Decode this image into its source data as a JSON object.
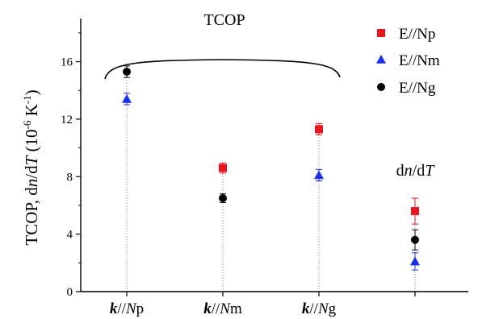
{
  "chart_data": {
    "type": "scatter",
    "categories": [
      "k//Np",
      "k//Nm",
      "k//Ng",
      "dn/dT"
    ],
    "category_labels": [
      {
        "bold": "k",
        "mid": "//",
        "ital": "N",
        "tail": "p"
      },
      {
        "bold": "k",
        "mid": "//",
        "ital": "N",
        "tail": "m"
      },
      {
        "bold": "k",
        "mid": "//",
        "ital": "N",
        "tail": "g"
      },
      {
        "bold": "",
        "mid": "",
        "ital": "",
        "tail": ""
      }
    ],
    "ylim": [
      0,
      19
    ],
    "yticks": [
      0,
      4,
      8,
      12,
      16
    ],
    "ylabel": {
      "pre": "TCOP, d",
      "n": "n",
      "mid": "/d",
      "T": "T",
      "space": " (10",
      "exp1": "-6",
      "k": " K",
      "exp2": "-1",
      "close": ")"
    },
    "series": [
      {
        "name": "E//Np",
        "marker": "square",
        "color": "#e8141e",
        "values": [
          null,
          8.6,
          11.3,
          5.6
        ],
        "errors": [
          null,
          0.35,
          0.4,
          0.9
        ]
      },
      {
        "name": "E//Nm",
        "marker": "triangle",
        "color": "#1a2ee6",
        "values": [
          13.4,
          null,
          8.1,
          2.1
        ],
        "errors": [
          0.4,
          null,
          0.4,
          0.6
        ]
      },
      {
        "name": "E//Ng",
        "marker": "circle",
        "color": "#000000",
        "values": [
          15.3,
          6.5,
          null,
          3.6
        ],
        "errors": [
          0.4,
          0.3,
          null,
          0.7
        ]
      }
    ],
    "annotations": {
      "tcop": "TCOP",
      "dndt": {
        "d1": "d",
        "n": "n",
        "slash": "/d",
        "T": "T"
      }
    },
    "legend_position": "top-right",
    "grid": false
  }
}
